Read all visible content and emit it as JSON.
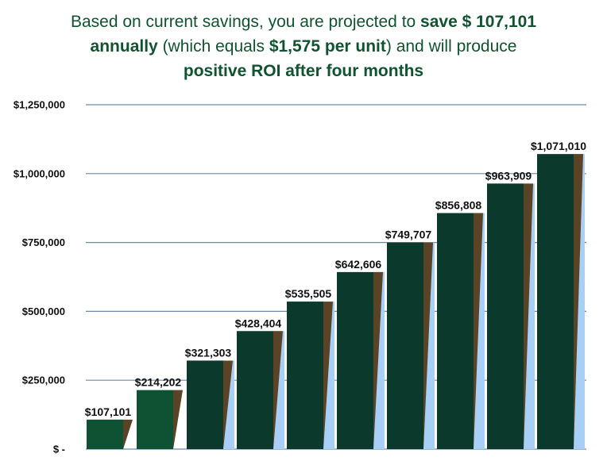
{
  "headline": {
    "l1a": "Based on current savings, you are projected to ",
    "l1b": "save $ 107,101",
    "l2a": "annually",
    "l2b": " (which equals ",
    "l2c": "$1,575 per unit",
    "l2d": ") and will produce",
    "l3": "positive ROI after four months"
  },
  "colors": {
    "title": "#10532f",
    "bar_light_green": "#0e5233",
    "bar_dark_green": "#0b3a2c",
    "bar_brown": "#5a4425",
    "bar_blue_shadow": "#a8cff5",
    "gridline": "#6b8aa8"
  },
  "chart_data": {
    "type": "bar",
    "categories": [
      "",
      "",
      "",
      "",
      "",
      "",
      "",
      "",
      "",
      ""
    ],
    "values": [
      107101,
      214202,
      321303,
      428404,
      535505,
      642606,
      749707,
      856808,
      963909,
      1071010
    ],
    "data_labels": [
      "$107,101",
      "$214,202",
      "$321,303",
      "$428,404",
      "$535,505",
      "$642,606",
      "$749,707",
      "$856,808",
      "$963,909",
      "$1,071,010"
    ],
    "y_ticks": [
      0,
      250000,
      500000,
      750000,
      1000000,
      1250000
    ],
    "y_tick_labels": [
      "$ -",
      "$250,000",
      "$500,000",
      "$750,000",
      "$1,000,000",
      "$1,250,000"
    ],
    "ylim": [
      0,
      1250000
    ],
    "grid": true,
    "legend": "none"
  }
}
